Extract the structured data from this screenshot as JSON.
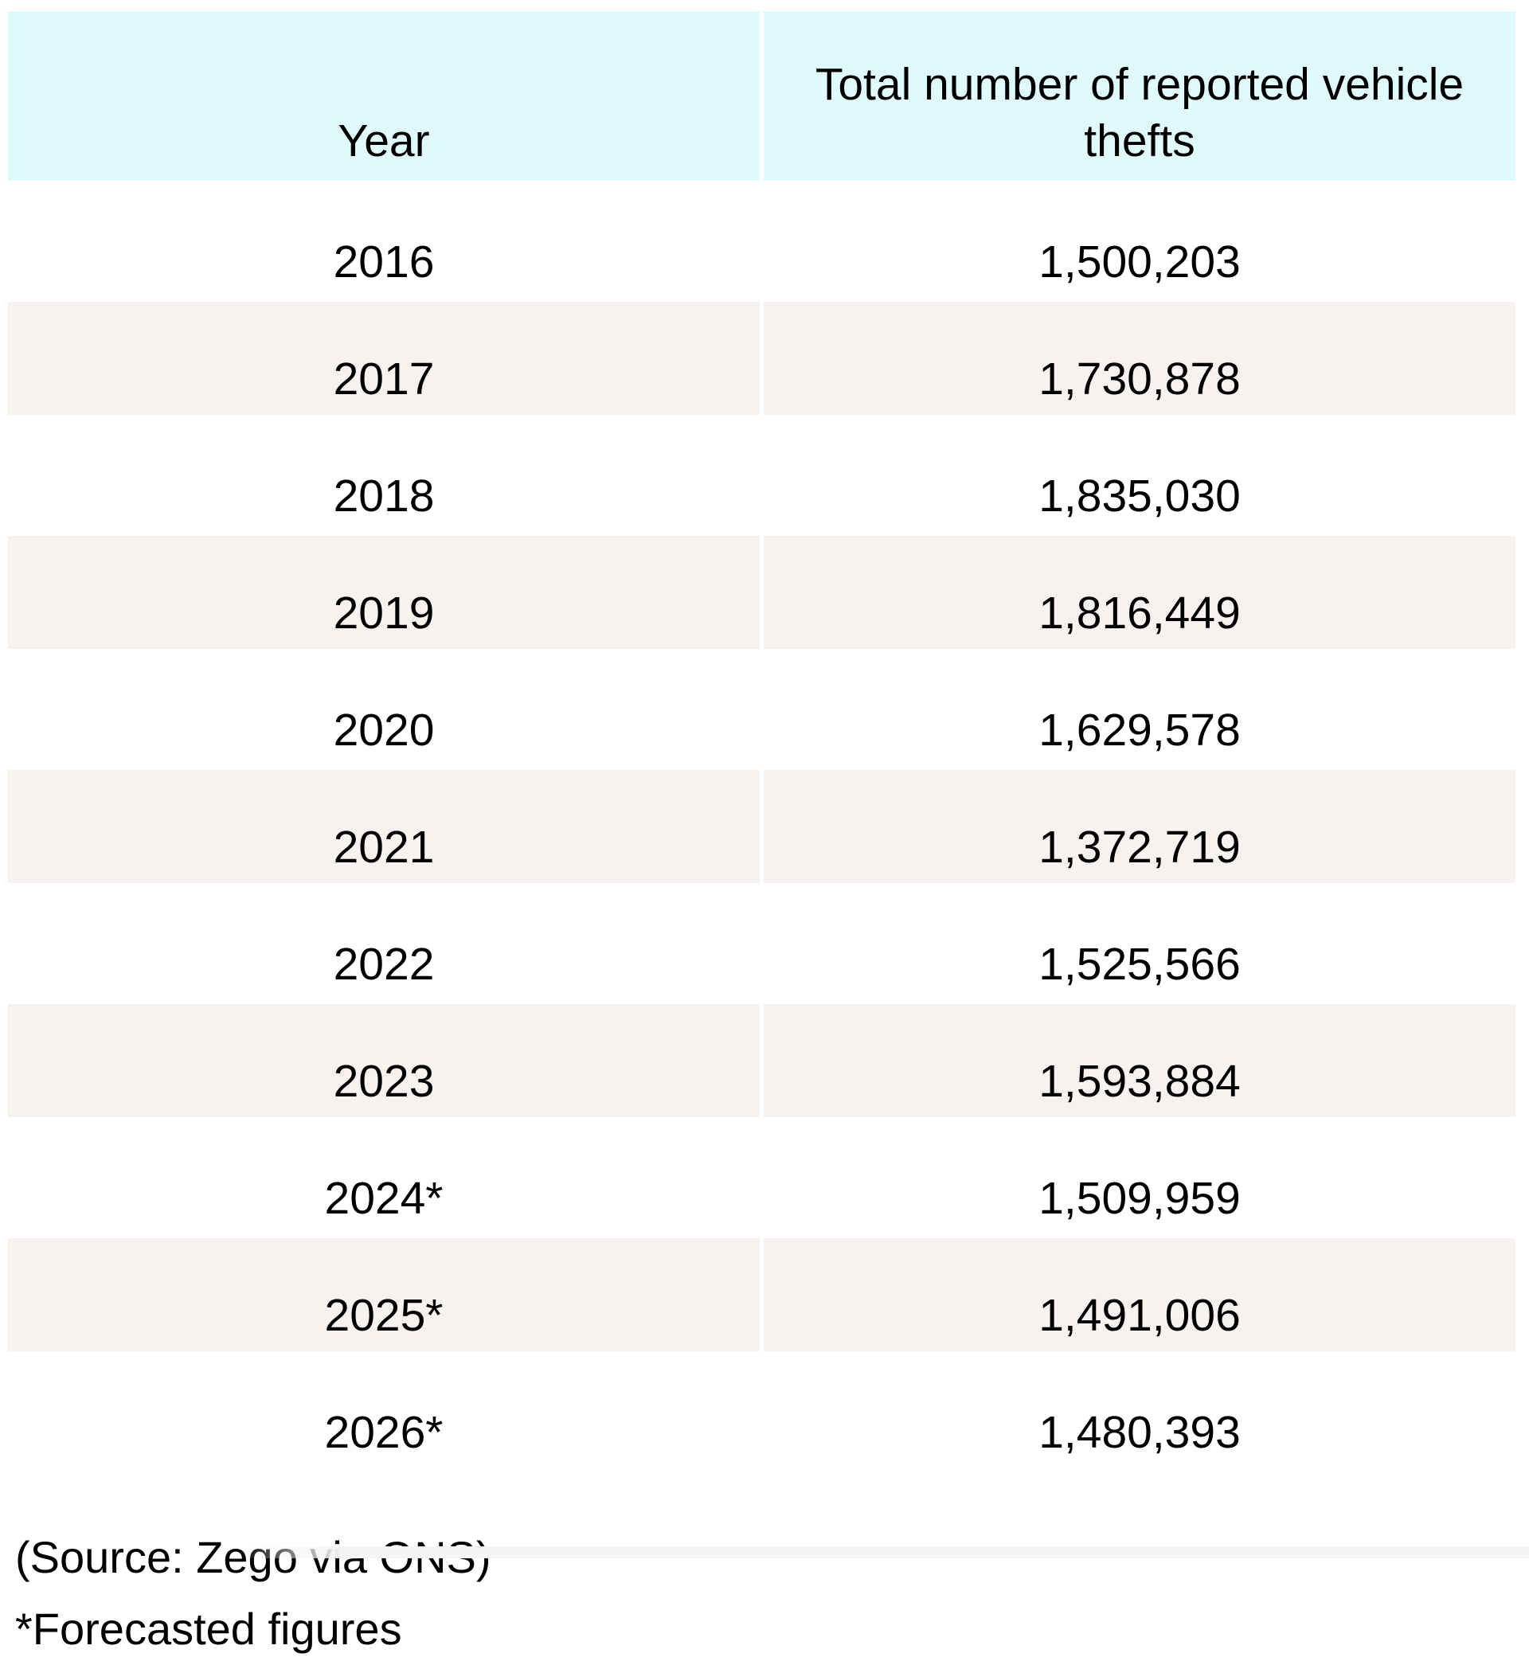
{
  "chart_data": {
    "type": "table",
    "columns": [
      "Year",
      "Total number of reported vehicle thefts"
    ],
    "rows": [
      [
        "2016",
        "1,500,203"
      ],
      [
        "2017",
        "1,730,878"
      ],
      [
        "2018",
        "1,835,030"
      ],
      [
        "2019",
        "1,816,449"
      ],
      [
        "2020",
        "1,629,578"
      ],
      [
        "2021",
        "1,372,719"
      ],
      [
        "2022",
        "1,525,566"
      ],
      [
        "2023",
        "1,593,884"
      ],
      [
        "2024*",
        "1,509,959"
      ],
      [
        "2025*",
        "1,491,006"
      ],
      [
        "2026*",
        "1,480,393"
      ]
    ],
    "footnotes": [
      "(Source: Zego via ONS)",
      "*Forecasted figures"
    ],
    "notes": "Years 2024-2026 marked with asterisk are forecasted figures; alternating white and light warm-grey rows; pale cyan header band"
  },
  "table": {
    "header": {
      "year_label": "Year",
      "thefts_label": "Total number of reported vehicle thefts"
    },
    "rows": [
      {
        "year": "2016",
        "thefts": "1,500,203"
      },
      {
        "year": "2017",
        "thefts": "1,730,878"
      },
      {
        "year": "2018",
        "thefts": "1,835,030"
      },
      {
        "year": "2019",
        "thefts": "1,816,449"
      },
      {
        "year": "2020",
        "thefts": "1,629,578"
      },
      {
        "year": "2021",
        "thefts": "1,372,719"
      },
      {
        "year": "2022",
        "thefts": "1,525,566"
      },
      {
        "year": "2023",
        "thefts": "1,593,884"
      },
      {
        "year": "2024*",
        "thefts": "1,509,959"
      },
      {
        "year": "2025*",
        "thefts": "1,491,006"
      },
      {
        "year": "2026*",
        "thefts": "1,480,393"
      }
    ]
  },
  "footer": {
    "source_line": "(Source: Zego via ONS)",
    "forecast_note": "*Forecasted figures"
  },
  "colors": {
    "header_bg": "#e0f9fb",
    "alt_row_bg": "#f7f2f0",
    "row_bg": "#ffffff",
    "page_bg": "#ffffff",
    "text": "#000000",
    "bottom_strip": "#f4f4f4"
  }
}
